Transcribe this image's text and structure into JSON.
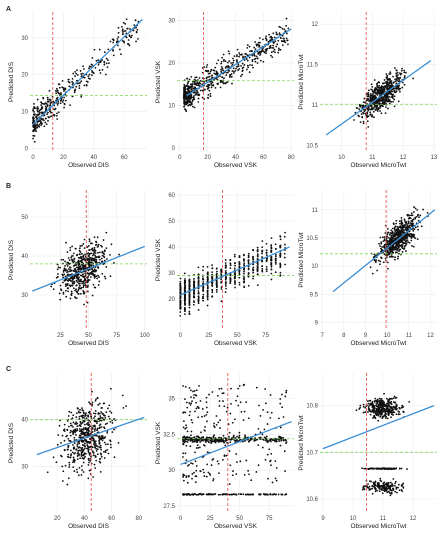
{
  "panel_labels": [
    "A",
    "B",
    "C"
  ],
  "colors": {
    "point": "#111111",
    "fit_line": "#3a8fd6",
    "observed_mean_line": "#e8473c",
    "predicted_mean_line": "#7ed957",
    "panel_background": "#ffffff",
    "grid": "#ececec",
    "axis_text": "#444444"
  },
  "chart_data": [
    {
      "id": "A1",
      "type": "scatter",
      "row": 0,
      "col": 0,
      "xlabel": "Observed DIS",
      "ylabel": "Predicted DIS",
      "xlim": [
        -2,
        75
      ],
      "ylim": [
        -1,
        37
      ],
      "xticks": [
        0,
        20,
        40,
        60
      ],
      "yticks": [
        0,
        10,
        20,
        30
      ],
      "vline": 13,
      "hline": 14.3,
      "fit": [
        [
          0,
          6.5
        ],
        [
          72,
          35
        ]
      ],
      "grid": true,
      "samples": {
        "n": 420,
        "x_range": [
          0,
          70
        ],
        "x_skew": 2.2,
        "slope": 0.38,
        "intercept": 6.8,
        "noise": 3.4,
        "seed": 11
      }
    },
    {
      "id": "A2",
      "type": "scatter",
      "row": 0,
      "col": 1,
      "xlabel": "Observed VSK",
      "ylabel": "Predicted VSK",
      "xlim": [
        -2,
        82
      ],
      "ylim": [
        -1,
        32
      ],
      "xticks": [
        0,
        20,
        40,
        60,
        80
      ],
      "yticks": [
        0,
        10,
        20,
        30
      ],
      "vline": 17,
      "hline": 15.8,
      "fit": [
        [
          5,
          12.3
        ],
        [
          80,
          28
        ]
      ],
      "grid": true,
      "samples": {
        "n": 650,
        "x_range": [
          3,
          78
        ],
        "x_skew": 1.9,
        "slope": 0.2,
        "intercept": 11.5,
        "noise": 2.8,
        "seed": 23
      }
    },
    {
      "id": "A3",
      "type": "scatter",
      "row": 0,
      "col": 2,
      "xlabel": "Observed MicroTwt",
      "ylabel": "Predicted MicroTwt",
      "xlim": [
        9.3,
        13.1
      ],
      "ylim": [
        10.42,
        12.15
      ],
      "xticks": [
        10,
        11,
        12,
        13
      ],
      "yticks": [
        10.5,
        11.0,
        11.5,
        12.0
      ],
      "vline": 10.8,
      "hline": 11.01,
      "fit": [
        [
          9.5,
          10.63
        ],
        [
          12.9,
          11.55
        ]
      ],
      "grid": true,
      "samples": {
        "n": 620,
        "x_range": [
          9.5,
          12.9
        ],
        "x_skew": 1.0,
        "x_center": 11.3,
        "x_spread": 0.55,
        "slope": 0.27,
        "intercept": 8.07,
        "noise": 0.16,
        "seed": 37
      }
    },
    {
      "id": "B1",
      "type": "scatter",
      "row": 1,
      "col": 0,
      "xlabel": "Observed DIS",
      "ylabel": "Predicted DIS",
      "xlim": [
        -2,
        102
      ],
      "ylim": [
        21,
        57
      ],
      "xticks": [
        25,
        50,
        75,
        100
      ],
      "yticks": [
        30,
        40,
        50
      ],
      "vline": 48,
      "hline": 38,
      "fit": [
        [
          0,
          31
        ],
        [
          100,
          42.5
        ]
      ],
      "grid": true,
      "samples": {
        "n": 560,
        "x_range": [
          2,
          98
        ],
        "x_skew": 1.0,
        "x_center": 45,
        "x_spread": 17,
        "slope": 0.12,
        "intercept": 31.5,
        "noise": 5.0,
        "seed": 53
      }
    },
    {
      "id": "B2",
      "type": "scatter",
      "row": 1,
      "col": 1,
      "xlabel": "Observed VSK",
      "ylabel": "Predicted VSK",
      "xlim": [
        -3,
        100
      ],
      "ylim": [
        8,
        62
      ],
      "xticks": [
        0,
        25,
        50,
        75
      ],
      "yticks": [
        20,
        30,
        40,
        50,
        60
      ],
      "vline": 37,
      "hline": 29,
      "fit": [
        [
          0,
          21.5
        ],
        [
          96,
          40
        ]
      ],
      "grid": true,
      "samples": {
        "n": 800,
        "x_range": [
          1,
          92
        ],
        "x_skew": 1.7,
        "slope": 0.19,
        "intercept": 21,
        "noise": 5.5,
        "seed": 71,
        "x_round": 4
      }
    },
    {
      "id": "B3",
      "type": "scatter",
      "row": 1,
      "col": 2,
      "xlabel": "Observed MicroTwt",
      "ylabel": "Predicted MicroTwt",
      "xlim": [
        6.9,
        12.3
      ],
      "ylim": [
        8.87,
        11.35
      ],
      "xticks": [
        7,
        8,
        9,
        10,
        11,
        12
      ],
      "yticks": [
        9.0,
        9.5,
        10.0,
        10.5,
        11.0
      ],
      "vline": 9.95,
      "hline": 10.22,
      "fit": [
        [
          7.5,
          9.55
        ],
        [
          12.2,
          11.0
        ]
      ],
      "grid": true,
      "samples": {
        "n": 640,
        "x_range": [
          7.4,
          12.2
        ],
        "x_skew": 1.0,
        "x_center": 10.5,
        "x_spread": 0.75,
        "slope": 0.31,
        "intercept": 7.23,
        "noise": 0.24,
        "seed": 89
      }
    },
    {
      "id": "C1",
      "type": "scatter",
      "row": 2,
      "col": 0,
      "xlabel": "Observed DIS",
      "ylabel": "Predicted DIS",
      "xlim": [
        0,
        86
      ],
      "ylim": [
        20,
        50
      ],
      "xticks": [
        20,
        40,
        60,
        80
      ],
      "yticks": [
        30,
        40
      ],
      "vline": 45,
      "hline": 40,
      "fit": [
        [
          5,
          32.5
        ],
        [
          84,
          40.5
        ]
      ],
      "grid": true,
      "samples": {
        "n": 560,
        "x_range": [
          5,
          82
        ],
        "x_skew": 1.0,
        "x_center": 42,
        "x_spread": 15,
        "slope": 0.1,
        "intercept": 32,
        "noise": 6.0,
        "seed": 97
      }
    },
    {
      "id": "C2",
      "type": "scatter",
      "row": 2,
      "col": 1,
      "xlabel": "Observed VSK",
      "ylabel": "Predicted VSK",
      "xlim": [
        -3,
        96
      ],
      "ylim": [
        27,
        36.8
      ],
      "xticks": [
        0,
        25,
        50,
        75
      ],
      "yticks": [
        27.5,
        30.0,
        32.5,
        35.0
      ],
      "vline": 40,
      "hline": 32.2,
      "fit": [
        [
          0,
          30.4
        ],
        [
          94,
          33.4
        ]
      ],
      "grid": true,
      "samples": {
        "n": 700,
        "x_range": [
          2,
          90
        ],
        "x_skew": 1.5,
        "bands": [
          [
            32.15,
            0.2,
            0.45
          ],
          [
            28.3,
            0.03,
            0.22
          ]
        ],
        "scatter_rest": [
          [
            29,
            36
          ],
          0.33
        ],
        "seed": 113
      }
    },
    {
      "id": "C3",
      "type": "scatter",
      "row": 2,
      "col": 2,
      "xlabel": "Observed MicroTwt",
      "ylabel": "Predicted MicroTwt",
      "xlim": [
        8.9,
        12.8
      ],
      "ylim": [
        10.57,
        10.87
      ],
      "xticks": [
        9,
        10,
        11,
        12
      ],
      "yticks": [
        10.6,
        10.7,
        10.8
      ],
      "vline": 10.45,
      "hline": 10.7,
      "fit": [
        [
          9,
          10.708
        ],
        [
          12.7,
          10.8
        ]
      ],
      "grid": true,
      "samples": {
        "n": 600,
        "x_range": [
          9.6,
          12.2
        ],
        "x_skew": 1.0,
        "x_center": 11.0,
        "x_spread": 0.5,
        "bands": [
          [
            10.795,
            0.018,
            0.55
          ],
          [
            10.625,
            0.012,
            0.3
          ],
          [
            10.665,
            0.001,
            0.15
          ]
        ],
        "seed": 131
      }
    }
  ]
}
